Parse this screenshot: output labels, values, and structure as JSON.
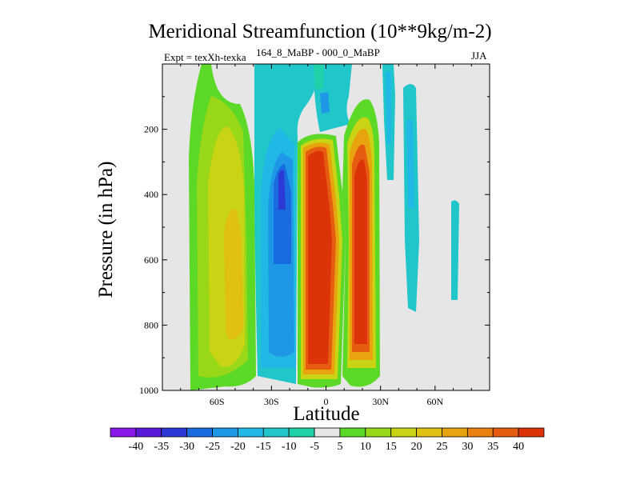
{
  "chart_data": {
    "type": "contour",
    "title": "Meridional Streamfunction (10**9kg/m-2)",
    "left_label": "Expt = texXh-texka",
    "center_label": "164_8_MaBP - 000_0_MaBP",
    "right_label": "JJA",
    "xlabel": "Latitude",
    "ylabel": "Pressure (in hPa)",
    "xlim": [
      -90,
      90
    ],
    "ylim": [
      1000,
      0
    ],
    "x_ticks": [
      "60S",
      "30S",
      "0",
      "30N",
      "60N"
    ],
    "x_tick_values": [
      -60,
      -30,
      0,
      30,
      60
    ],
    "y_ticks": [
      "200",
      "400",
      "600",
      "800",
      "1000"
    ],
    "y_tick_values": [
      200,
      400,
      600,
      800,
      1000
    ],
    "colorbar": {
      "levels": [
        "-40",
        "-35",
        "-30",
        "-25",
        "-20",
        "-15",
        "-10",
        "-5",
        "5",
        "10",
        "15",
        "20",
        "25",
        "30",
        "35",
        "40"
      ],
      "colors": [
        "#8a18e8",
        "#5a1ad8",
        "#2b3ad4",
        "#1a6ae0",
        "#1e98e6",
        "#22b8e6",
        "#20c6c9",
        "#1fd2a8",
        "#e6e6e6",
        "#5cd826",
        "#98d818",
        "#c8d414",
        "#e0c010",
        "#e8a40e",
        "#ea8010",
        "#e65c10",
        "#dc3408"
      ]
    },
    "features": [
      {
        "name": "southern positive cell",
        "lat_range": [
          -80,
          -50
        ],
        "p_range": [
          80,
          980
        ],
        "peak": 20
      },
      {
        "name": "southern negative cell",
        "lat_range": [
          -50,
          -15
        ],
        "p_range": [
          80,
          960
        ],
        "peak": -35
      },
      {
        "name": "equatorial positive cell",
        "lat_range": [
          -17,
          8
        ],
        "p_range": [
          190,
          990
        ],
        "peak": 40
      },
      {
        "name": "tropical positive cell",
        "lat_range": [
          8,
          27
        ],
        "p_range": [
          190,
          990
        ],
        "peak": 40
      },
      {
        "name": "northern negative cell",
        "lat_range": [
          32,
          48
        ],
        "p_range": [
          0,
          700
        ],
        "peak": -15
      }
    ]
  }
}
